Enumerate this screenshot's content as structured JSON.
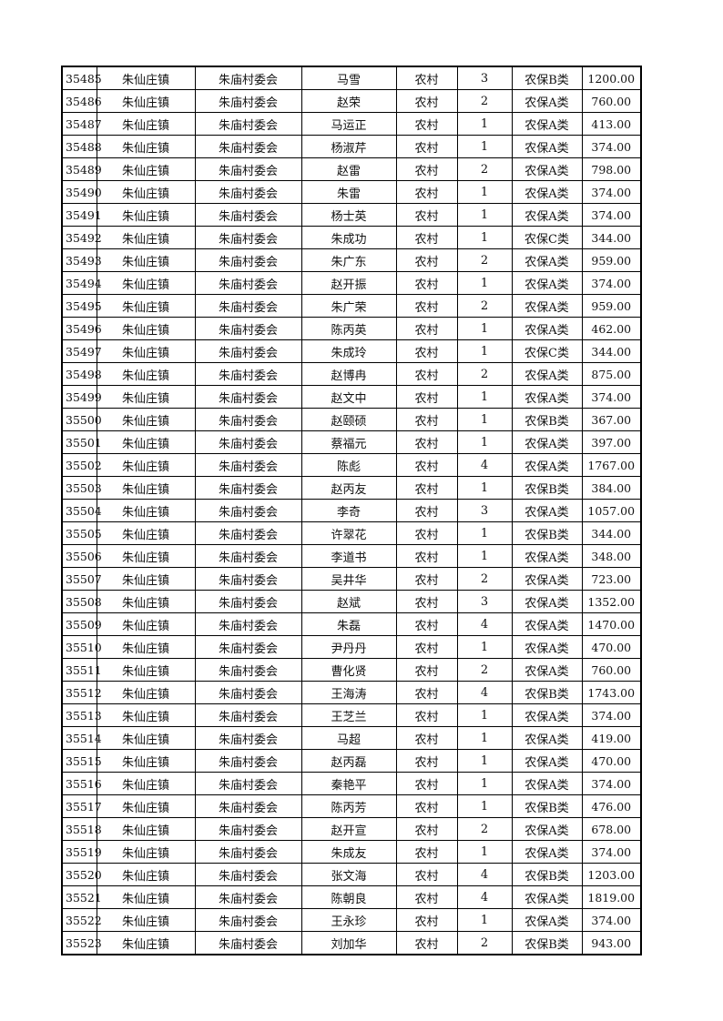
{
  "table": {
    "rows": [
      [
        "35485",
        "朱仙庄镇",
        "朱庙村委会",
        "马雪",
        "农村",
        "3",
        "农保B类",
        "1200.00"
      ],
      [
        "35486",
        "朱仙庄镇",
        "朱庙村委会",
        "赵荣",
        "农村",
        "2",
        "农保A类",
        "760.00"
      ],
      [
        "35487",
        "朱仙庄镇",
        "朱庙村委会",
        "马运正",
        "农村",
        "1",
        "农保A类",
        "413.00"
      ],
      [
        "35488",
        "朱仙庄镇",
        "朱庙村委会",
        "杨淑芹",
        "农村",
        "1",
        "农保A类",
        "374.00"
      ],
      [
        "35489",
        "朱仙庄镇",
        "朱庙村委会",
        "赵雷",
        "农村",
        "2",
        "农保A类",
        "798.00"
      ],
      [
        "35490",
        "朱仙庄镇",
        "朱庙村委会",
        "朱雷",
        "农村",
        "1",
        "农保A类",
        "374.00"
      ],
      [
        "35491",
        "朱仙庄镇",
        "朱庙村委会",
        "杨士英",
        "农村",
        "1",
        "农保A类",
        "374.00"
      ],
      [
        "35492",
        "朱仙庄镇",
        "朱庙村委会",
        "朱成功",
        "农村",
        "1",
        "农保C类",
        "344.00"
      ],
      [
        "35493",
        "朱仙庄镇",
        "朱庙村委会",
        "朱广东",
        "农村",
        "2",
        "农保A类",
        "959.00"
      ],
      [
        "35494",
        "朱仙庄镇",
        "朱庙村委会",
        "赵开振",
        "农村",
        "1",
        "农保A类",
        "374.00"
      ],
      [
        "35495",
        "朱仙庄镇",
        "朱庙村委会",
        "朱广荣",
        "农村",
        "2",
        "农保A类",
        "959.00"
      ],
      [
        "35496",
        "朱仙庄镇",
        "朱庙村委会",
        "陈丙英",
        "农村",
        "1",
        "农保A类",
        "462.00"
      ],
      [
        "35497",
        "朱仙庄镇",
        "朱庙村委会",
        "朱成玲",
        "农村",
        "1",
        "农保C类",
        "344.00"
      ],
      [
        "35498",
        "朱仙庄镇",
        "朱庙村委会",
        "赵博冉",
        "农村",
        "2",
        "农保A类",
        "875.00"
      ],
      [
        "35499",
        "朱仙庄镇",
        "朱庙村委会",
        "赵文中",
        "农村",
        "1",
        "农保A类",
        "374.00"
      ],
      [
        "35500",
        "朱仙庄镇",
        "朱庙村委会",
        "赵颐硕",
        "农村",
        "1",
        "农保B类",
        "367.00"
      ],
      [
        "35501",
        "朱仙庄镇",
        "朱庙村委会",
        "蔡福元",
        "农村",
        "1",
        "农保A类",
        "397.00"
      ],
      [
        "35502",
        "朱仙庄镇",
        "朱庙村委会",
        "陈彪",
        "农村",
        "4",
        "农保A类",
        "1767.00"
      ],
      [
        "35503",
        "朱仙庄镇",
        "朱庙村委会",
        "赵丙友",
        "农村",
        "1",
        "农保B类",
        "384.00"
      ],
      [
        "35504",
        "朱仙庄镇",
        "朱庙村委会",
        "李奇",
        "农村",
        "3",
        "农保A类",
        "1057.00"
      ],
      [
        "35505",
        "朱仙庄镇",
        "朱庙村委会",
        "许翠花",
        "农村",
        "1",
        "农保B类",
        "344.00"
      ],
      [
        "35506",
        "朱仙庄镇",
        "朱庙村委会",
        "李道书",
        "农村",
        "1",
        "农保A类",
        "348.00"
      ],
      [
        "35507",
        "朱仙庄镇",
        "朱庙村委会",
        "吴井华",
        "农村",
        "2",
        "农保A类",
        "723.00"
      ],
      [
        "35508",
        "朱仙庄镇",
        "朱庙村委会",
        "赵斌",
        "农村",
        "3",
        "农保A类",
        "1352.00"
      ],
      [
        "35509",
        "朱仙庄镇",
        "朱庙村委会",
        "朱磊",
        "农村",
        "4",
        "农保A类",
        "1470.00"
      ],
      [
        "35510",
        "朱仙庄镇",
        "朱庙村委会",
        "尹丹丹",
        "农村",
        "1",
        "农保A类",
        "470.00"
      ],
      [
        "35511",
        "朱仙庄镇",
        "朱庙村委会",
        "曹化贤",
        "农村",
        "2",
        "农保A类",
        "760.00"
      ],
      [
        "35512",
        "朱仙庄镇",
        "朱庙村委会",
        "王海涛",
        "农村",
        "4",
        "农保B类",
        "1743.00"
      ],
      [
        "35513",
        "朱仙庄镇",
        "朱庙村委会",
        "王芝兰",
        "农村",
        "1",
        "农保A类",
        "374.00"
      ],
      [
        "35514",
        "朱仙庄镇",
        "朱庙村委会",
        "马超",
        "农村",
        "1",
        "农保A类",
        "419.00"
      ],
      [
        "35515",
        "朱仙庄镇",
        "朱庙村委会",
        "赵丙磊",
        "农村",
        "1",
        "农保A类",
        "470.00"
      ],
      [
        "35516",
        "朱仙庄镇",
        "朱庙村委会",
        "秦艳平",
        "农村",
        "1",
        "农保A类",
        "374.00"
      ],
      [
        "35517",
        "朱仙庄镇",
        "朱庙村委会",
        "陈丙芳",
        "农村",
        "1",
        "农保B类",
        "476.00"
      ],
      [
        "35518",
        "朱仙庄镇",
        "朱庙村委会",
        "赵开宣",
        "农村",
        "2",
        "农保A类",
        "678.00"
      ],
      [
        "35519",
        "朱仙庄镇",
        "朱庙村委会",
        "朱成友",
        "农村",
        "1",
        "农保A类",
        "374.00"
      ],
      [
        "35520",
        "朱仙庄镇",
        "朱庙村委会",
        "张文海",
        "农村",
        "4",
        "农保B类",
        "1203.00"
      ],
      [
        "35521",
        "朱仙庄镇",
        "朱庙村委会",
        "陈朝良",
        "农村",
        "4",
        "农保A类",
        "1819.00"
      ],
      [
        "35522",
        "朱仙庄镇",
        "朱庙村委会",
        "王永珍",
        "农村",
        "1",
        "农保A类",
        "374.00"
      ],
      [
        "35523",
        "朱仙庄镇",
        "朱庙村委会",
        "刘加华",
        "农村",
        "2",
        "农保B类",
        "943.00"
      ]
    ]
  }
}
